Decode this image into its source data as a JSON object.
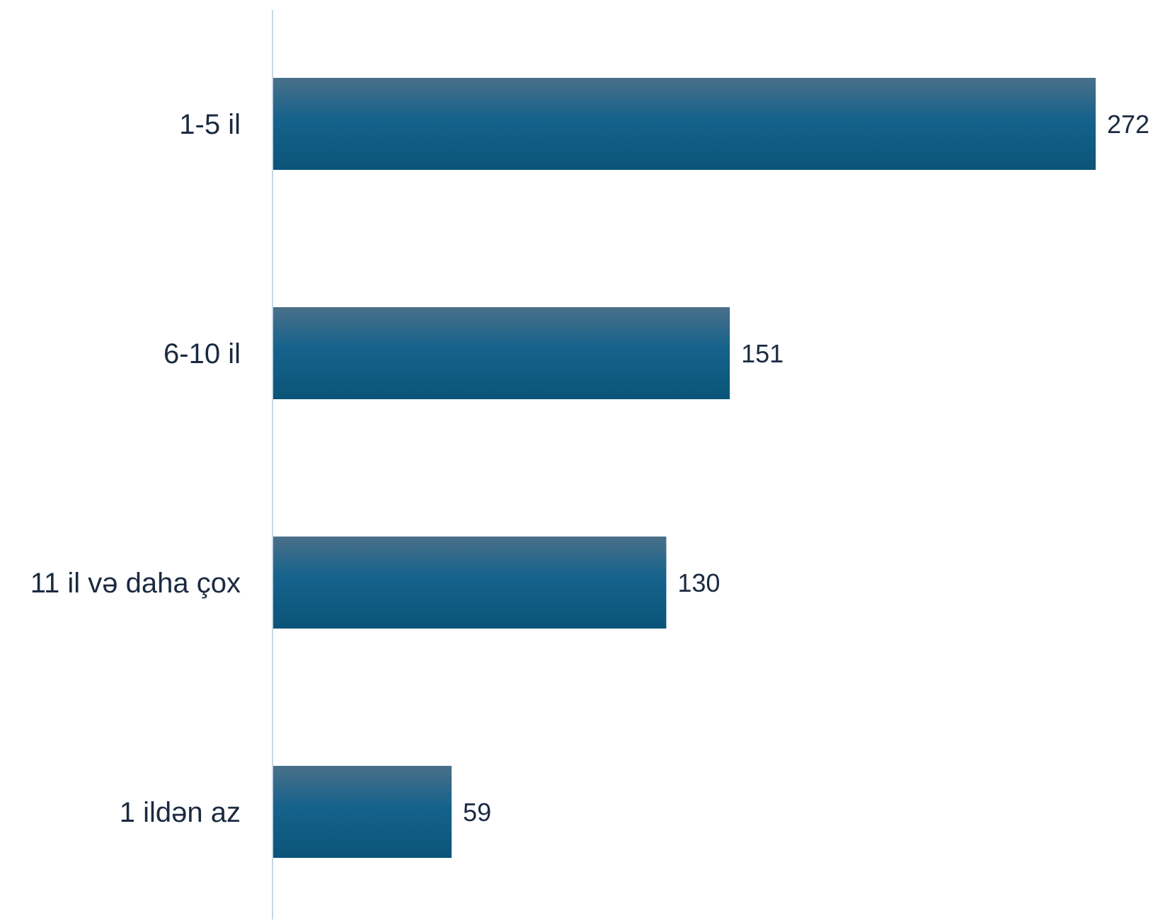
{
  "chart_data": {
    "type": "bar",
    "orientation": "horizontal",
    "categories": [
      "1-5 il",
      "6-10 il",
      "11 il və daha çox",
      "1 ildən az"
    ],
    "values": [
      272,
      151,
      130,
      59
    ],
    "title": "",
    "xlabel": "",
    "ylabel": "",
    "xlim": [
      0,
      272
    ],
    "grid": false,
    "legend": "none",
    "data_labels": true
  },
  "colors": {
    "bar_top": "#4a7089",
    "bar_mid": "#15628c",
    "bar_bottom": "#0b5478",
    "axis_line": "#c8d8e4",
    "category_text": "#1b2a40",
    "value_text": "#1b2a40"
  }
}
